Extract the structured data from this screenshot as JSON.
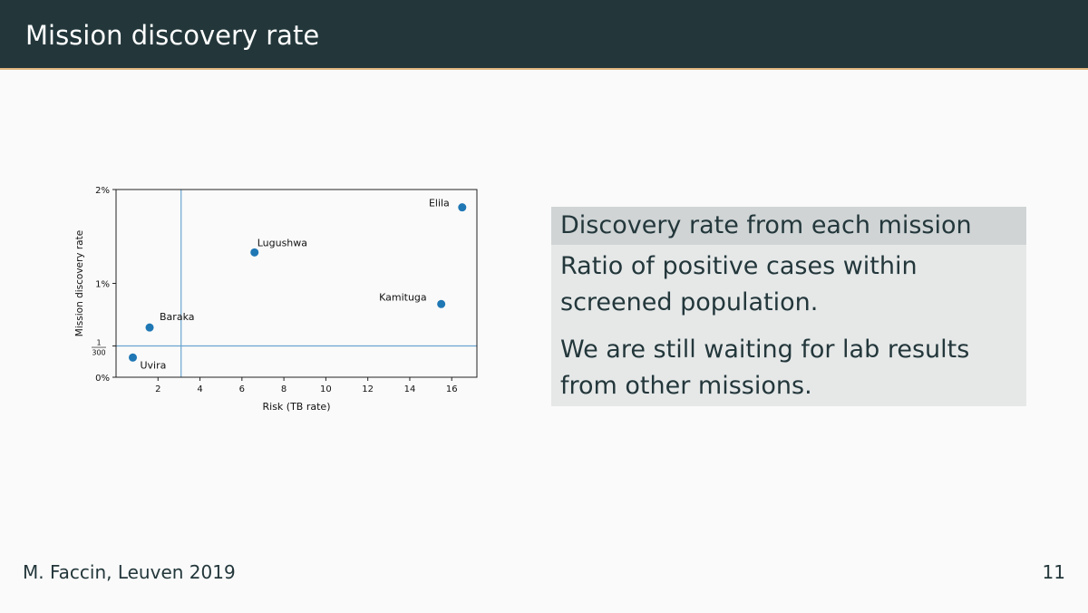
{
  "header": {
    "title": "Mission discovery rate"
  },
  "block": {
    "title": "Discovery rate from each mission",
    "paragraphs": [
      "Ratio of positive cases within screened population.",
      "We are still waiting for lab results from other missions."
    ]
  },
  "footer": {
    "author": "M. Faccin, Leuven 2019",
    "page": "11"
  },
  "colors": {
    "header_bg": "#23373b",
    "accent": "#e0b77e",
    "point": "#1f77b4",
    "refline": "#6aa4cf"
  },
  "chart_data": {
    "type": "scatter",
    "xlabel": "Risk (TB rate)",
    "ylabel": "Mission discovery rate",
    "xlim": [
      0,
      17.2
    ],
    "ylim": [
      0,
      2
    ],
    "xticks": [
      2,
      4,
      6,
      8,
      10,
      12,
      14,
      16
    ],
    "yticks": [
      {
        "value": 0,
        "label": "0%"
      },
      {
        "value": 1,
        "label": "1%"
      },
      {
        "value": 2,
        "label": "2%"
      }
    ],
    "special_ytick": {
      "value": 0.333,
      "num": "1",
      "den": "300"
    },
    "vline_x": 3.1,
    "hline_y": 0.333,
    "points": [
      {
        "name": "Uvira",
        "x": 0.8,
        "y": 0.21
      },
      {
        "name": "Baraka",
        "x": 1.6,
        "y": 0.53
      },
      {
        "name": "Lugushwa",
        "x": 6.6,
        "y": 1.33
      },
      {
        "name": "Kamituga",
        "x": 15.5,
        "y": 0.78
      },
      {
        "name": "Elila",
        "x": 16.5,
        "y": 1.81
      }
    ]
  }
}
